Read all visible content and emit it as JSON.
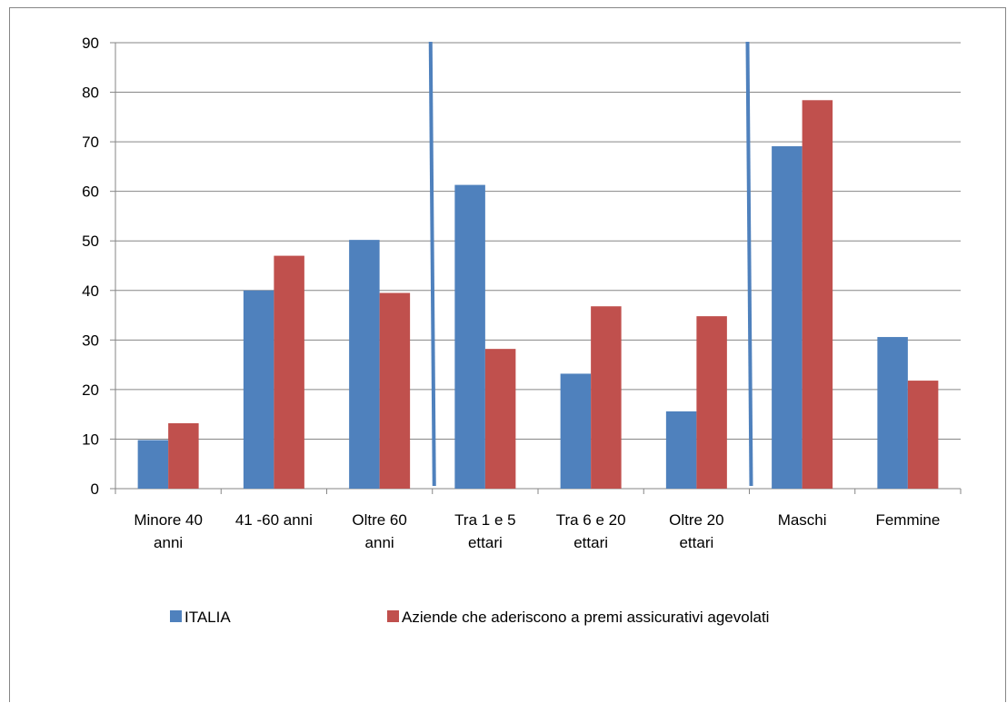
{
  "chart_data": {
    "type": "bar",
    "categories": [
      [
        "Minore 40",
        "anni"
      ],
      [
        "41 -60 anni"
      ],
      [
        "Oltre 60",
        "anni"
      ],
      [
        "Tra 1 e 5",
        "ettari"
      ],
      [
        "Tra 6 e 20",
        "ettari"
      ],
      [
        "Oltre 20",
        "ettari"
      ],
      [
        "Maschi"
      ],
      [
        "Femmine"
      ]
    ],
    "series": [
      {
        "name": "ITALIA",
        "color": "#4F81BD",
        "values": [
          9.8,
          40.0,
          50.2,
          61.3,
          23.2,
          15.6,
          69.1,
          30.6
        ]
      },
      {
        "name": "Aziende che aderiscono a premi assicurativi agevolati",
        "color": "#C0504D",
        "values": [
          13.2,
          47.0,
          39.5,
          28.2,
          36.8,
          34.8,
          78.4,
          21.8
        ]
      }
    ],
    "ylim": [
      0,
      90
    ],
    "yticks": [
      0,
      10,
      20,
      30,
      40,
      50,
      60,
      70,
      80,
      90
    ],
    "grid": true,
    "legend_position": "bottom",
    "separators_after_category": [
      2,
      5
    ],
    "separator_color": "#4F81BD"
  }
}
